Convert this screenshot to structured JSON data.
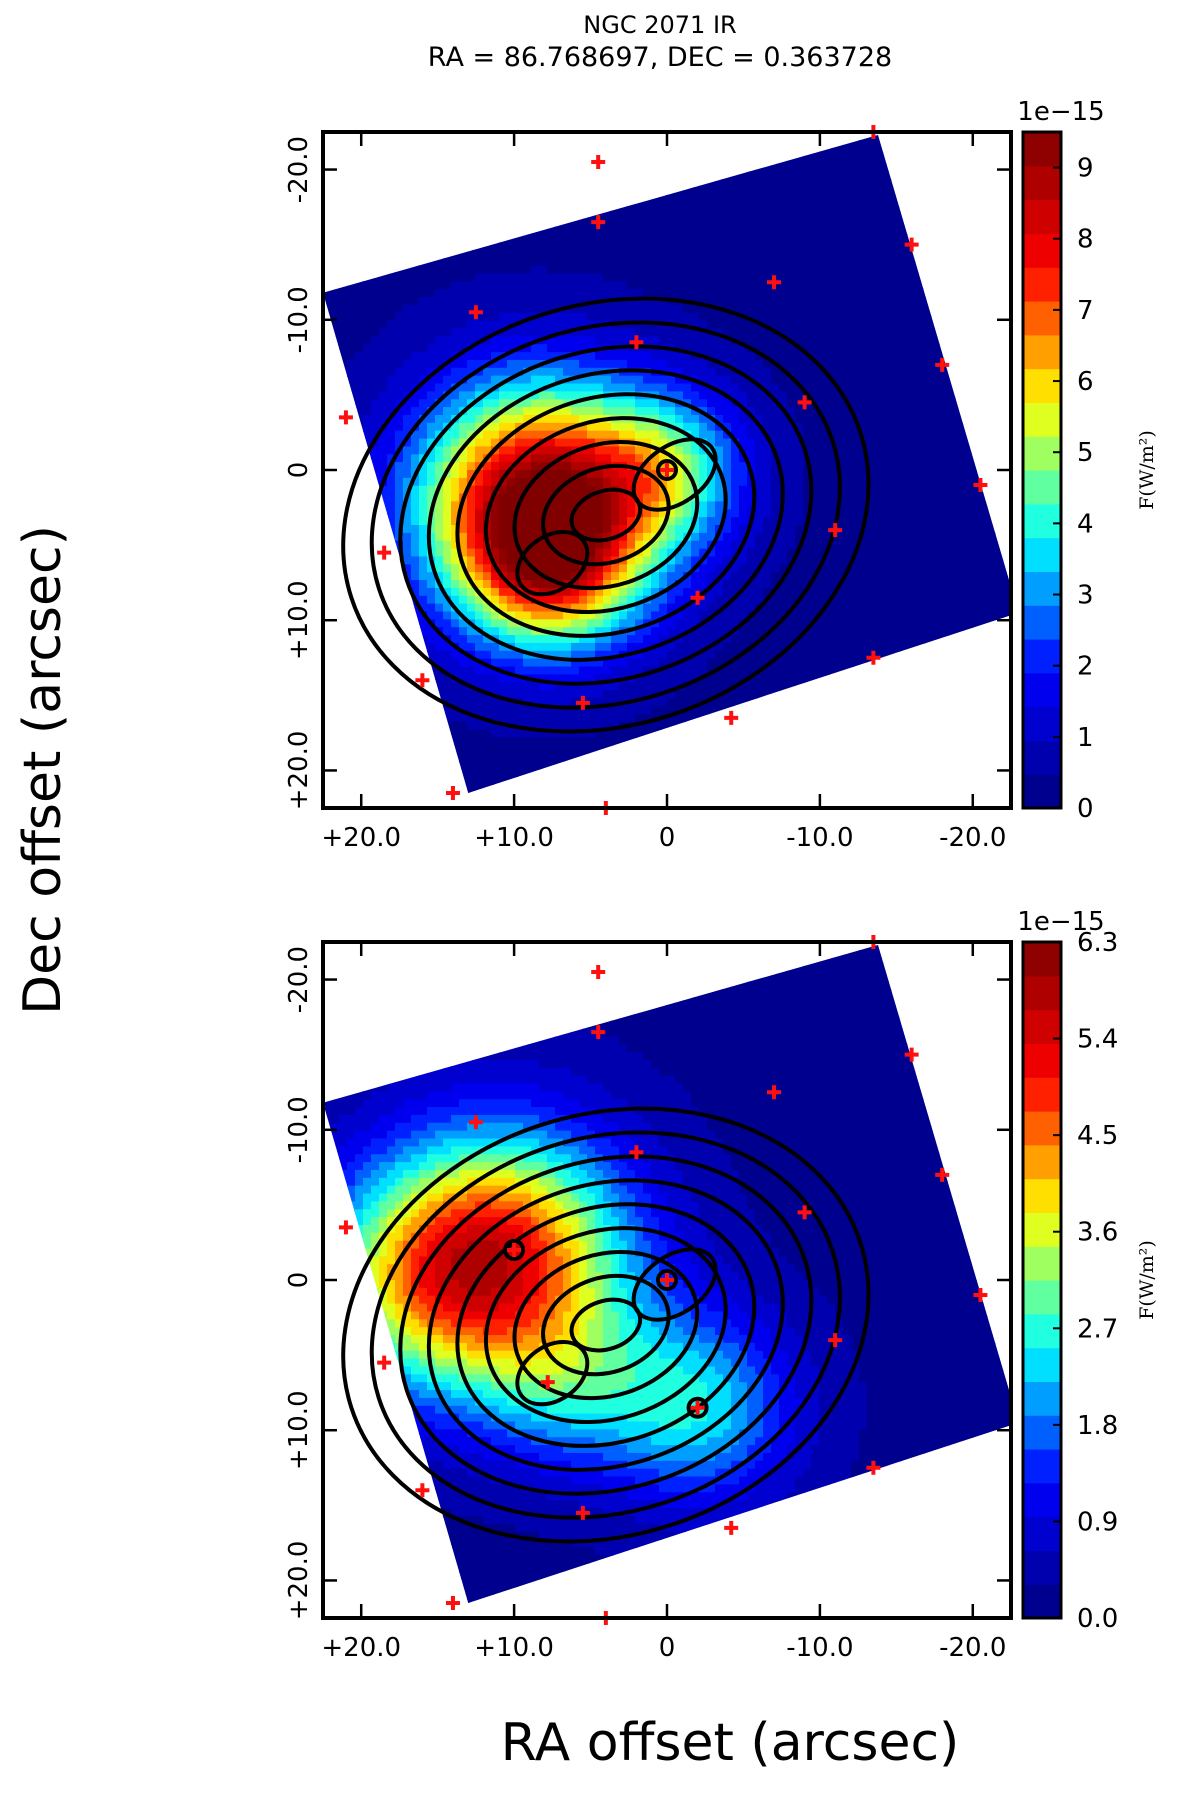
{
  "figure": {
    "title_line1": "NGC 2071 IR",
    "title_line2": "RA = 86.768697, DEC = 0.363728",
    "xlabel": "RA offset (arcsec)",
    "ylabel": "Dec offset (arcsec)"
  },
  "chart_data": [
    {
      "type": "heatmap",
      "x_range": [
        22.5,
        -22.5
      ],
      "y_range": [
        -22.5,
        22.5
      ],
      "x_ticks": [
        20,
        10,
        0,
        -10,
        -20
      ],
      "x_tick_labels": [
        "+20.0",
        "+10.0",
        "0",
        "-10.0",
        "-20.0"
      ],
      "y_ticks": [
        -20,
        -10,
        0,
        10,
        20
      ],
      "y_tick_labels": [
        "-20.0",
        "-10.0",
        "0",
        "+10.0",
        "+20.0"
      ],
      "colorbar": {
        "multiplier": "1e−15",
        "label": "F(W/m²)",
        "range": [
          0,
          9.5
        ],
        "ticks": [
          0,
          1,
          2,
          3,
          4,
          5,
          6,
          7,
          8,
          9
        ],
        "tick_labels": [
          "0",
          "1",
          "2",
          "3",
          "4",
          "5",
          "6",
          "7",
          "8",
          "9"
        ]
      },
      "map_corners": [
        [
          22.5,
          -11.8
        ],
        [
          -13.8,
          -22.3
        ],
        [
          -23.0,
          9.5
        ],
        [
          13.0,
          21.5
        ]
      ],
      "emission_peaks": [
        {
          "x": 8.5,
          "y": 2.0,
          "amplitude": 8.6,
          "sigma": 5.5
        },
        {
          "x": 7.5,
          "y": 6.5,
          "amplitude": 4.0,
          "sigma": 3.8
        },
        {
          "x": 0,
          "y": 0,
          "amplitude": 3.2,
          "sigma": 3.6
        }
      ],
      "sources": [
        {
          "x": 4.5,
          "y": -20.5
        },
        {
          "x": -13.5,
          "y": -22.5
        },
        {
          "x": 4.5,
          "y": -16.5
        },
        {
          "x": -16.0,
          "y": -15.0
        },
        {
          "x": -7.0,
          "y": -12.5
        },
        {
          "x": 12.5,
          "y": -10.5
        },
        {
          "x": 2.0,
          "y": -8.5
        },
        {
          "x": -18.0,
          "y": -7.0
        },
        {
          "x": 21.0,
          "y": -3.5
        },
        {
          "x": -9.0,
          "y": -4.5
        },
        {
          "x": 0,
          "y": 0
        },
        {
          "x": -20.5,
          "y": 1.0
        },
        {
          "x": -11.0,
          "y": 4.0
        },
        {
          "x": 18.5,
          "y": 5.5
        },
        {
          "x": -2.0,
          "y": 8.5
        },
        {
          "x": -13.5,
          "y": 12.5
        },
        {
          "x": 16.0,
          "y": 14.0
        },
        {
          "x": 5.5,
          "y": 15.5
        },
        {
          "x": -4.2,
          "y": 16.5
        },
        {
          "x": 14.0,
          "y": 21.5
        },
        {
          "x": 4.0,
          "y": 22.5
        },
        {
          "x": -23.0,
          "y": 9.5
        }
      ],
      "circled_sources": [
        {
          "x": 0,
          "y": 0
        }
      ]
    },
    {
      "type": "heatmap",
      "x_range": [
        22.5,
        -22.5
      ],
      "y_range": [
        -22.5,
        22.5
      ],
      "x_ticks": [
        20,
        10,
        0,
        -10,
        -20
      ],
      "x_tick_labels": [
        "+20.0",
        "+10.0",
        "0",
        "-10.0",
        "-20.0"
      ],
      "y_ticks": [
        -20,
        -10,
        0,
        10,
        20
      ],
      "y_tick_labels": [
        "-20.0",
        "-10.0",
        "0",
        "+10.0",
        "+20.0"
      ],
      "colorbar": {
        "multiplier": "1e−15",
        "label": "F(W/m²)",
        "range": [
          0,
          6.3
        ],
        "ticks": [
          0,
          0.9,
          1.8,
          2.7,
          3.6,
          4.5,
          5.4,
          6.3
        ],
        "tick_labels": [
          "0.0",
          "0.9",
          "1.8",
          "2.7",
          "3.6",
          "4.5",
          "5.4",
          "6.3"
        ]
      },
      "map_corners": [
        [
          22.5,
          -11.8
        ],
        [
          -13.8,
          -22.3
        ],
        [
          -23.0,
          9.5
        ],
        [
          13.0,
          21.5
        ]
      ],
      "emission_peaks": [
        {
          "x": 11.0,
          "y": -1.5,
          "amplitude": 4.8,
          "sigma": 6.0
        },
        {
          "x": 17.0,
          "y": 0.5,
          "amplitude": 1.6,
          "sigma": 5.0
        },
        {
          "x": -2.0,
          "y": 8.5,
          "amplitude": 2.2,
          "sigma": 4.5
        },
        {
          "x": 6.5,
          "y": 7.0,
          "amplitude": 1.2,
          "sigma": 4.0
        }
      ],
      "sources": [
        {
          "x": 4.5,
          "y": -20.5
        },
        {
          "x": -13.5,
          "y": -22.5
        },
        {
          "x": 4.5,
          "y": -16.5
        },
        {
          "x": -16.0,
          "y": -15.0
        },
        {
          "x": -7.0,
          "y": -12.5
        },
        {
          "x": 12.5,
          "y": -10.5
        },
        {
          "x": 2.0,
          "y": -8.5
        },
        {
          "x": -18.0,
          "y": -7.0
        },
        {
          "x": 21.0,
          "y": -3.5
        },
        {
          "x": -9.0,
          "y": -4.5
        },
        {
          "x": 0,
          "y": 0
        },
        {
          "x": 10.0,
          "y": -2.0
        },
        {
          "x": -20.5,
          "y": 1.0
        },
        {
          "x": -11.0,
          "y": 4.0
        },
        {
          "x": 18.5,
          "y": 5.5
        },
        {
          "x": 7.8,
          "y": 6.8
        },
        {
          "x": -2.0,
          "y": 8.5
        },
        {
          "x": -13.5,
          "y": 12.5
        },
        {
          "x": 16.0,
          "y": 14.0
        },
        {
          "x": 5.5,
          "y": 15.5
        },
        {
          "x": -4.2,
          "y": 16.5
        },
        {
          "x": 14.0,
          "y": 21.5
        },
        {
          "x": 4.0,
          "y": 22.5
        },
        {
          "x": -23.0,
          "y": 9.5
        }
      ],
      "circled_sources": [
        {
          "x": 0,
          "y": 0
        },
        {
          "x": 10.0,
          "y": -2.0
        },
        {
          "x": -2.0,
          "y": 8.5
        }
      ]
    }
  ]
}
